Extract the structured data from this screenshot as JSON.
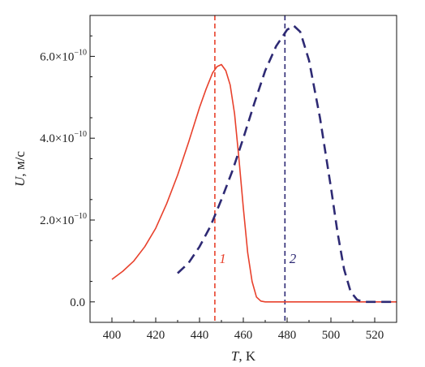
{
  "chart_data": {
    "type": "line",
    "xlabel": "T, K",
    "xlabel_var": "T",
    "xlabel_unit": ", K",
    "ylabel": "U, м/с",
    "ylabel_var": "U",
    "ylabel_unit": ", м/с",
    "xlim": [
      390,
      530
    ],
    "ylim": [
      -5e-11,
      7e-10
    ],
    "x_ticks": [
      {
        "value": 400,
        "label": "400"
      },
      {
        "value": 420,
        "label": "420"
      },
      {
        "value": 440,
        "label": "440"
      },
      {
        "value": 460,
        "label": "460"
      },
      {
        "value": 480,
        "label": "480"
      },
      {
        "value": 500,
        "label": "500"
      },
      {
        "value": 520,
        "label": "520"
      }
    ],
    "y_ticks": [
      {
        "value": 0,
        "mantissa": "0.0",
        "exp": ""
      },
      {
        "value": 2e-10,
        "mantissa": "2.0×10",
        "exp": "−10"
      },
      {
        "value": 4e-10,
        "mantissa": "4.0×10",
        "exp": "−10"
      },
      {
        "value": 6e-10,
        "mantissa": "6.0×10",
        "exp": "−10"
      }
    ],
    "series": [
      {
        "label": "1",
        "color": "#e8412c",
        "style": "solid",
        "x": [
          400,
          405,
          410,
          415,
          420,
          425,
          430,
          435,
          440,
          443,
          446,
          448,
          450,
          452,
          454,
          456,
          458,
          460,
          462,
          464,
          466,
          468,
          470,
          475,
          480,
          490,
          500,
          510,
          520,
          530
        ],
        "y": [
          5.5e-11,
          7.5e-11,
          1e-10,
          1.35e-10,
          1.8e-10,
          2.4e-10,
          3.1e-10,
          3.9e-10,
          4.75e-10,
          5.2e-10,
          5.6e-10,
          5.75e-10,
          5.8e-10,
          5.65e-10,
          5.3e-10,
          4.6e-10,
          3.5e-10,
          2.3e-10,
          1.2e-10,
          5e-11,
          1.2e-11,
          2e-12,
          0,
          0,
          0,
          0,
          0,
          0,
          0,
          0
        ]
      },
      {
        "label": "2",
        "color": "#2e2a74",
        "style": "dashed",
        "x": [
          430,
          435,
          440,
          445,
          450,
          455,
          460,
          465,
          470,
          475,
          480,
          483,
          486,
          490,
          495,
          500,
          503,
          506,
          509,
          512,
          515,
          520,
          530
        ],
        "y": [
          7e-11,
          9.5e-11,
          1.35e-10,
          1.85e-10,
          2.5e-10,
          3.2e-10,
          4e-10,
          4.85e-10,
          5.65e-10,
          6.25e-10,
          6.65e-10,
          6.75e-10,
          6.6e-10,
          5.9e-10,
          4.5e-10,
          2.8e-10,
          1.7e-10,
          8e-11,
          2.5e-11,
          5e-12,
          0,
          0,
          0
        ]
      }
    ],
    "vlines": [
      {
        "x": 447,
        "color": "#e8412c",
        "series": "1"
      },
      {
        "x": 479,
        "color": "#2e2a74",
        "series": "2"
      }
    ],
    "annotations": [
      {
        "text": "1",
        "x": 449,
        "y": 9.5e-11,
        "color": "#e8412c"
      },
      {
        "text": "2",
        "x": 481,
        "y": 9.5e-11,
        "color": "#2e2a74"
      }
    ],
    "grid": false,
    "legend": "none"
  }
}
